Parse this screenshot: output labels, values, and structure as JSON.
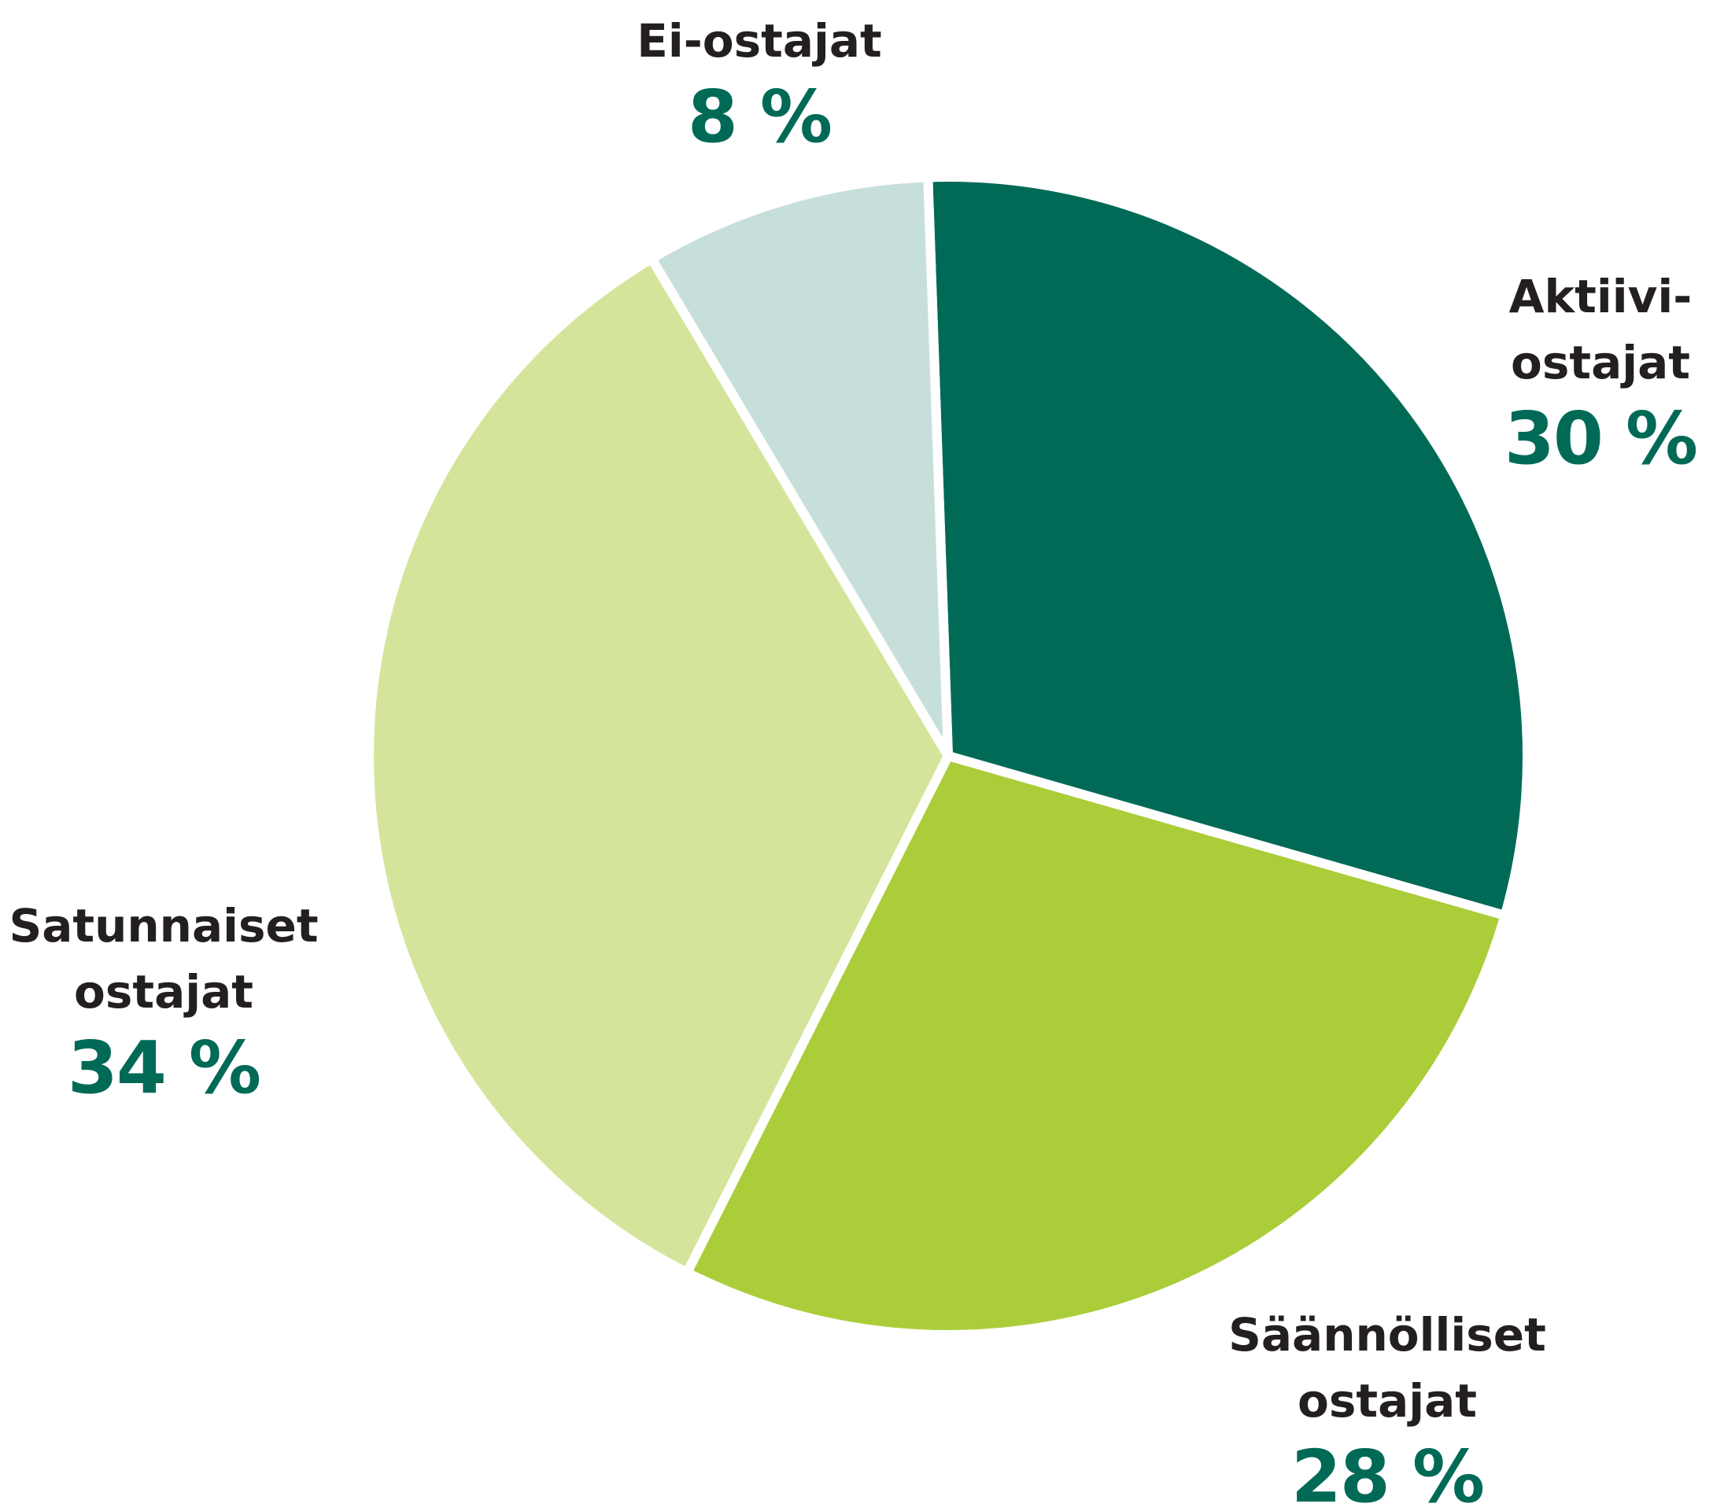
{
  "chart_data": {
    "type": "pie",
    "categories": [
      "Aktiivi-ostajat",
      "Säännölliset ostajat",
      "Satunnaiset ostajat",
      "Ei-ostajat"
    ],
    "values": [
      30,
      28,
      34,
      8
    ],
    "value_labels": [
      "30 %",
      "28 %",
      "34 %",
      "8 %"
    ],
    "colors": [
      "#006a57",
      "#abcd3a",
      "#d4e59b",
      "#c7dfdb"
    ]
  }
}
